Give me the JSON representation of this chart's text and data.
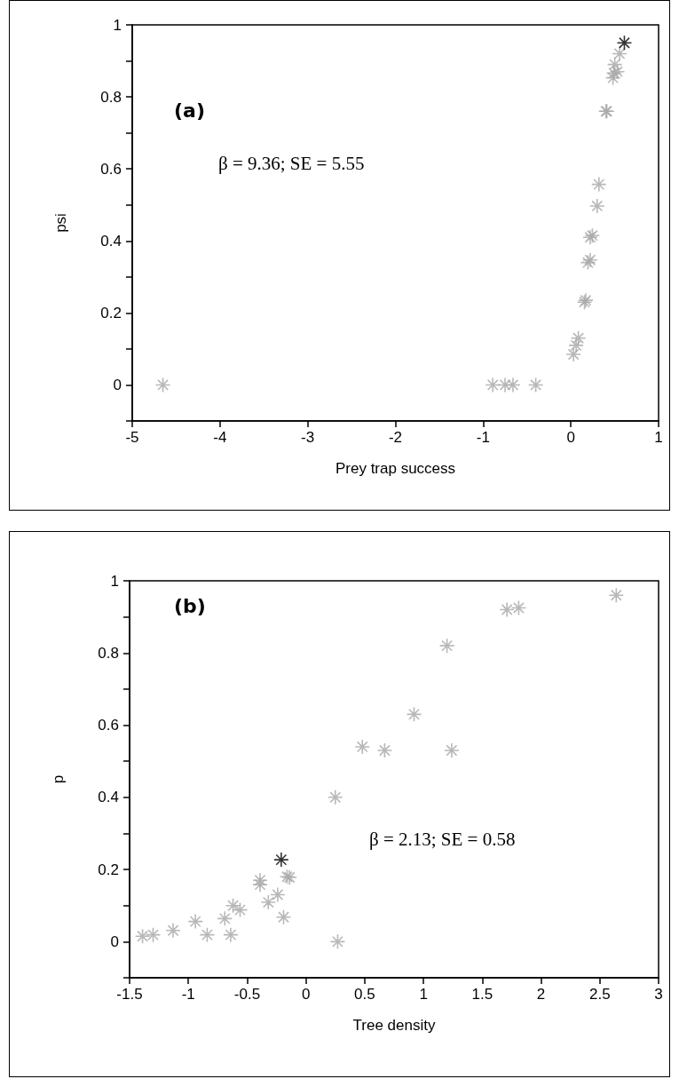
{
  "chart_data": [
    {
      "type": "scatter",
      "xlabel": "Prey trap success",
      "ylabel": "psi",
      "annotations": [
        "(a)",
        "β = 9.36; SE = 5.55"
      ],
      "marker": "cross",
      "grid": false,
      "xlim": [
        -5,
        1
      ],
      "xticks": [
        -5,
        -4,
        -3,
        -2,
        -1,
        0,
        1
      ],
      "ylim": [
        -0.1,
        1
      ],
      "yticks": [
        {
          "value": -0.1,
          "label": null
        },
        0,
        {
          "value": 0.1,
          "label": null
        },
        0.2,
        {
          "value": 0.3,
          "label": null
        },
        0.4,
        {
          "value": 0.5,
          "label": null
        },
        0.6,
        {
          "value": 0.7,
          "label": null
        },
        0.8,
        {
          "value": 0.9,
          "label": null
        },
        1
      ],
      "series": [
        {
          "color": "#a6a6a6",
          "x": [
            -4.65,
            -0.89,
            -0.75,
            -0.66,
            -0.4,
            0.03,
            0.06,
            0.085,
            0.155,
            0.17,
            0.195,
            0.22,
            0.22,
            0.245,
            0.3,
            0.32,
            0.4,
            0.41,
            0.48,
            0.49,
            0.5,
            0.53,
            0.555
          ],
          "values": [
            0,
            0,
            0,
            0,
            0,
            0.085,
            0.11,
            0.13,
            0.23,
            0.235,
            0.34,
            0.347,
            0.41,
            0.415,
            0.497,
            0.557,
            0.76,
            0.76,
            0.853,
            0.866,
            0.89,
            0.87,
            0.92
          ]
        },
        {
          "color": "#000000",
          "x": [
            0.61
          ],
          "values": [
            0.95
          ]
        }
      ]
    },
    {
      "type": "scatter",
      "xlabel": "Tree density",
      "ylabel": "p",
      "annotations": [
        "(b)",
        "β = 2.13; SE = 0.58"
      ],
      "marker": "cross",
      "grid": false,
      "xlim": [
        -1.5,
        3
      ],
      "xticks": [
        -1.5,
        -1,
        -0.5,
        0,
        0.5,
        1,
        1.5,
        2,
        2.5,
        3
      ],
      "ylim": [
        -0.1,
        1
      ],
      "yticks": [
        {
          "value": -0.1,
          "label": null
        },
        0,
        {
          "value": 0.1,
          "label": null
        },
        0.2,
        {
          "value": 0.3,
          "label": null
        },
        0.4,
        {
          "value": 0.5,
          "label": null
        },
        0.6,
        {
          "value": 0.7,
          "label": null
        },
        0.8,
        {
          "value": 0.9,
          "label": null
        },
        1
      ],
      "series": [
        {
          "color": "#a6a6a6",
          "x": [
            -1.39,
            -1.3,
            -1.13,
            -0.94,
            -0.84,
            -0.69,
            -0.64,
            -0.62,
            -0.56,
            -0.39,
            -0.39,
            -0.32,
            -0.24,
            -0.19,
            -0.16,
            -0.14,
            0.25,
            0.27,
            0.48,
            0.67,
            0.92,
            1.2,
            1.24,
            1.71,
            1.81,
            2.64
          ],
          "values": [
            0.015,
            0.019,
            0.031,
            0.056,
            0.019,
            0.064,
            0.019,
            0.1,
            0.088,
            0.17,
            0.158,
            0.109,
            0.13,
            0.068,
            0.18,
            0.178,
            0.4,
            0,
            0.54,
            0.53,
            0.63,
            0.82,
            0.53,
            0.92,
            0.925,
            0.96
          ]
        },
        {
          "color": "#000000",
          "x": [
            -0.21
          ],
          "values": [
            0.227
          ]
        }
      ]
    }
  ]
}
